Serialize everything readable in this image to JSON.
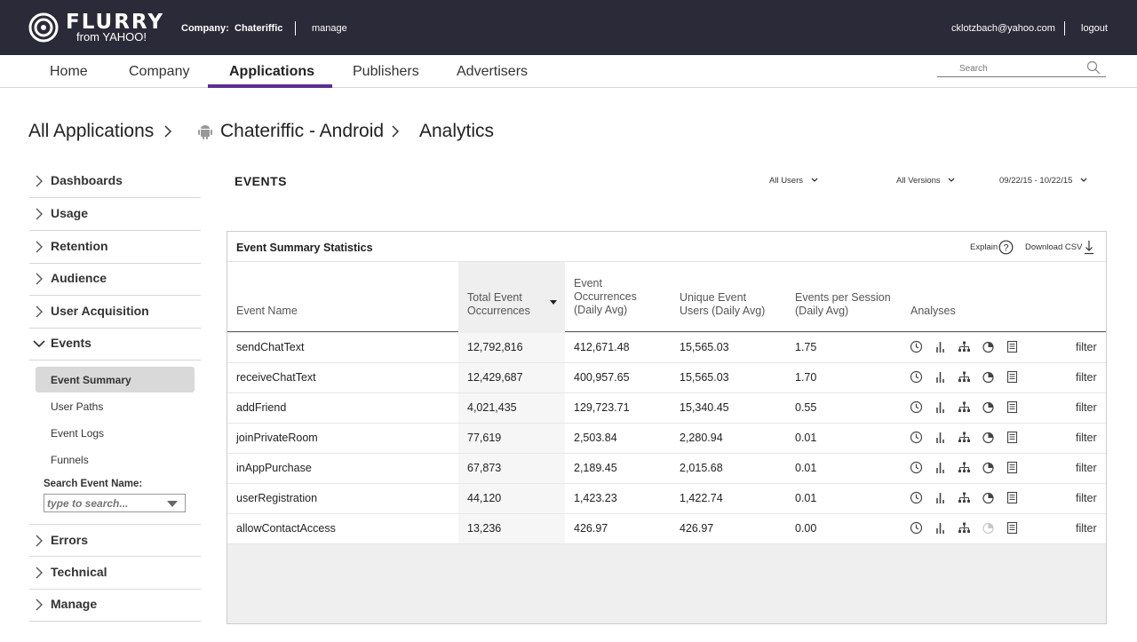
{
  "header": {
    "logo_text": "FLURRY",
    "logo_sub": "from YAHOO!",
    "company_label": "Company:",
    "company_name": "Chateriffic",
    "manage_label": "manage",
    "user_email": "cklotzbach@yahoo.com",
    "logout_label": "logout"
  },
  "nav": {
    "tabs": [
      {
        "label": "Home"
      },
      {
        "label": "Company"
      },
      {
        "label": "Applications",
        "active": true
      },
      {
        "label": "Publishers"
      },
      {
        "label": "Advertisers"
      }
    ],
    "search_placeholder": "Search",
    "accent_color": "#5c2d91"
  },
  "breadcrumb": {
    "items": [
      "All Applications",
      "Chateriffic - Android",
      "Analytics"
    ]
  },
  "sidebar": {
    "sections": [
      {
        "label": "Dashboards"
      },
      {
        "label": "Usage"
      },
      {
        "label": "Retention"
      },
      {
        "label": "Audience"
      },
      {
        "label": "User Acquisition"
      },
      {
        "label": "Events",
        "expanded": true
      },
      {
        "label": "Errors"
      },
      {
        "label": "Technical"
      },
      {
        "label": "Manage"
      }
    ],
    "event_sub_items": [
      {
        "label": "Event Summary",
        "active": true
      },
      {
        "label": "User Paths"
      },
      {
        "label": "Event Logs"
      },
      {
        "label": "Funnels"
      }
    ],
    "search_label": "Search Event Name:",
    "search_placeholder": "type to search..."
  },
  "events": {
    "title": "EVENTS",
    "filters": {
      "users": "All Users",
      "versions": "All Versions",
      "date_range": "09/22/15 - 10/22/15"
    }
  },
  "panel": {
    "title": "Event Summary Statistics",
    "explain_label": "Explain",
    "download_label": "Download CSV",
    "columns": {
      "event_name": "Event Name",
      "total_line1": "Total Event",
      "total_line2": "Occurrences",
      "occ_line1": "Event",
      "occ_line2": "Occurrences",
      "occ_line3": "(Daily Avg)",
      "unique_line1": "Unique Event",
      "unique_line2": "Users (Daily Avg)",
      "eps_line1": "Events per Session",
      "eps_line2": "(Daily Avg)",
      "analyses": "Analyses"
    },
    "rows": [
      {
        "name": "sendChatText",
        "total": "12,792,816",
        "daily": "412,671.48",
        "unique": "15,565.03",
        "eps": "1.75",
        "filter": "filter"
      },
      {
        "name": "receiveChatText",
        "total": "12,429,687",
        "daily": "400,957.65",
        "unique": "15,565.03",
        "eps": "1.70",
        "filter": "filter"
      },
      {
        "name": "addFriend",
        "total": "4,021,435",
        "daily": "129,723.71",
        "unique": "15,340.45",
        "eps": "0.55",
        "filter": "filter"
      },
      {
        "name": "joinPrivateRoom",
        "total": "77,619",
        "daily": "2,503.84",
        "unique": "2,280.94",
        "eps": "0.01",
        "filter": "filter"
      },
      {
        "name": "inAppPurchase",
        "total": "67,873",
        "daily": "2,189.45",
        "unique": "2,015.68",
        "eps": "0.01",
        "filter": "filter"
      },
      {
        "name": "userRegistration",
        "total": "44,120",
        "daily": "1,423.23",
        "unique": "1,422.74",
        "eps": "0.01",
        "filter": "filter"
      },
      {
        "name": "allowContactAccess",
        "total": "13,236",
        "daily": "426.97",
        "unique": "426.97",
        "eps": "0.00",
        "filter": "filter",
        "pie_disabled": true
      }
    ],
    "analysis_icons": [
      "clock-icon",
      "bar-chart-icon",
      "hierarchy-icon",
      "pie-chart-icon",
      "log-list-icon"
    ]
  }
}
